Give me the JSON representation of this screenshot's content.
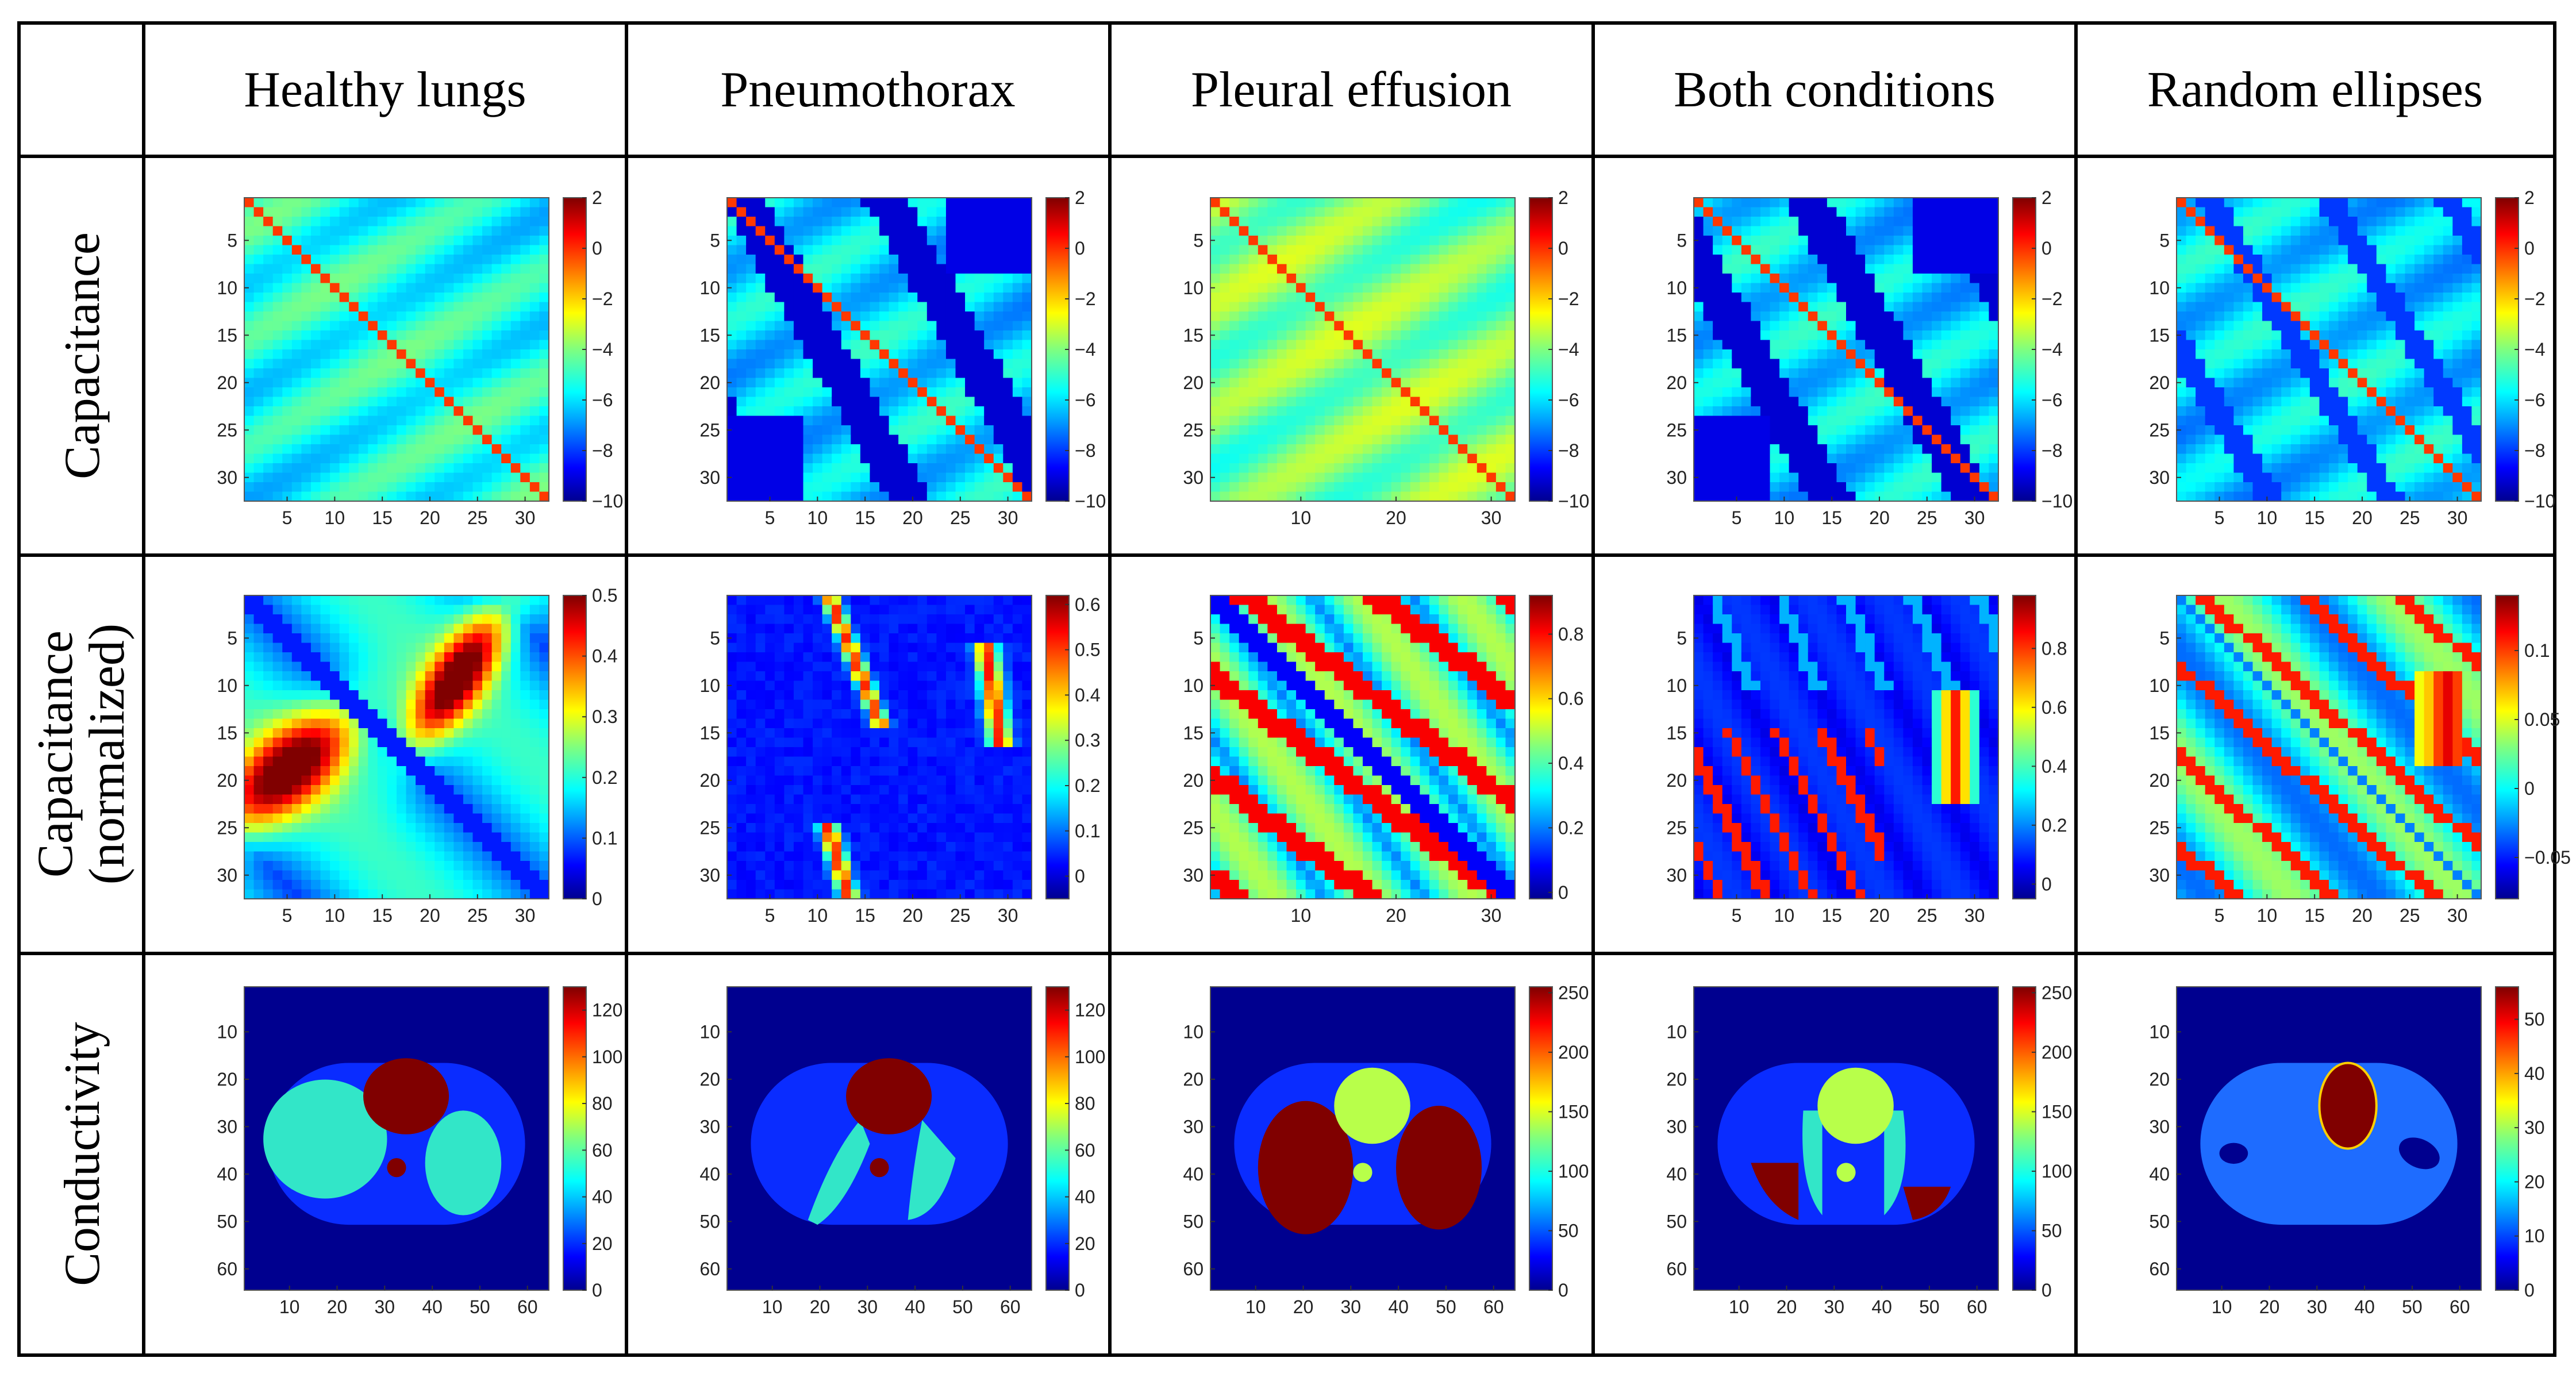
{
  "columns": [
    "Healthy lungs",
    "Pneumothorax",
    "Pleural effusion",
    "Both conditions",
    "Random ellipses"
  ],
  "rows": [
    "Capacitance",
    "Capacitance",
    "Conductivity"
  ],
  "row2_line2": "(normalized)",
  "chart_data": [
    {
      "type": "heatmap",
      "panel": "capacitance-healthy",
      "xticks": [
        5,
        10,
        15,
        20,
        25,
        30
      ],
      "yticks": [
        5,
        10,
        15,
        20,
        25,
        30
      ],
      "cbar_ticks": [
        2,
        0,
        -2,
        -4,
        -6,
        -8,
        -10
      ],
      "clim": [
        -10,
        2
      ]
    },
    {
      "type": "heatmap",
      "panel": "capacitance-pneumothorax",
      "xticks": [
        5,
        10,
        15,
        20,
        25,
        30
      ],
      "yticks": [
        5,
        10,
        15,
        20,
        25,
        30
      ],
      "cbar_ticks": [
        2,
        0,
        -2,
        -4,
        -6,
        -8,
        -10
      ],
      "clim": [
        -10,
        2
      ]
    },
    {
      "type": "heatmap",
      "panel": "capacitance-effusion",
      "xticks": [
        10,
        20,
        30
      ],
      "yticks": [
        5,
        10,
        15,
        20,
        25,
        30
      ],
      "cbar_ticks": [
        2,
        0,
        -2,
        -4,
        -6,
        -8,
        -10
      ],
      "clim": [
        -10,
        2
      ]
    },
    {
      "type": "heatmap",
      "panel": "capacitance-both",
      "xticks": [
        5,
        10,
        15,
        20,
        25,
        30
      ],
      "yticks": [
        5,
        10,
        15,
        20,
        25,
        30
      ],
      "cbar_ticks": [
        2,
        0,
        -2,
        -4,
        -6,
        -8,
        -10
      ],
      "clim": [
        -10,
        2
      ]
    },
    {
      "type": "heatmap",
      "panel": "capacitance-ellipses",
      "xticks": [
        5,
        10,
        15,
        20,
        25,
        30
      ],
      "yticks": [
        5,
        10,
        15,
        20,
        25,
        30
      ],
      "cbar_ticks": [
        2,
        0,
        -2,
        -4,
        -6,
        -8,
        -10
      ],
      "clim": [
        -10,
        2
      ]
    },
    {
      "type": "heatmap",
      "panel": "normalized-healthy",
      "xticks": [
        5,
        10,
        15,
        20,
        25,
        30
      ],
      "yticks": [
        5,
        10,
        15,
        20,
        25,
        30
      ],
      "cbar_ticks": [
        0.5,
        0.4,
        0.3,
        0.2,
        0.1,
        0
      ],
      "clim": [
        0,
        0.5
      ]
    },
    {
      "type": "heatmap",
      "panel": "normalized-pneumothorax",
      "xticks": [
        5,
        10,
        15,
        20,
        25,
        30
      ],
      "yticks": [
        5,
        10,
        15,
        20,
        25,
        30
      ],
      "cbar_ticks": [
        0.6,
        0.5,
        0.4,
        0.3,
        0.2,
        0.1,
        0
      ],
      "clim": [
        -0.05,
        0.62
      ]
    },
    {
      "type": "heatmap",
      "panel": "normalized-effusion",
      "xticks": [
        10,
        20,
        30
      ],
      "yticks": [
        5,
        10,
        15,
        20,
        25,
        30
      ],
      "cbar_ticks": [
        0.8,
        0.6,
        0.4,
        0.2,
        0
      ],
      "clim": [
        -0.02,
        0.92
      ]
    },
    {
      "type": "heatmap",
      "panel": "normalized-both",
      "xticks": [
        5,
        10,
        15,
        20,
        25,
        30
      ],
      "yticks": [
        5,
        10,
        15,
        20,
        25,
        30
      ],
      "cbar_ticks": [
        0.8,
        0.6,
        0.4,
        0.2,
        0
      ],
      "clim": [
        -0.05,
        0.98
      ]
    },
    {
      "type": "heatmap",
      "panel": "normalized-ellipses",
      "xticks": [
        5,
        10,
        15,
        20,
        25,
        30
      ],
      "yticks": [
        5,
        10,
        15,
        20,
        25,
        30
      ],
      "cbar_ticks": [
        0.1,
        0.05,
        0,
        -0.05
      ],
      "clim": [
        -0.08,
        0.14
      ]
    },
    {
      "type": "heatmap",
      "panel": "conductivity-healthy",
      "xticks": [
        10,
        20,
        30,
        40,
        50,
        60
      ],
      "yticks": [
        10,
        20,
        30,
        40,
        50,
        60
      ],
      "cbar_ticks": [
        120,
        100,
        80,
        60,
        40,
        20,
        0
      ],
      "clim": [
        0,
        130
      ]
    },
    {
      "type": "heatmap",
      "panel": "conductivity-pneumothorax",
      "xticks": [
        10,
        20,
        30,
        40,
        50,
        60
      ],
      "yticks": [
        10,
        20,
        30,
        40,
        50,
        60
      ],
      "cbar_ticks": [
        120,
        100,
        80,
        60,
        40,
        20,
        0
      ],
      "clim": [
        0,
        130
      ]
    },
    {
      "type": "heatmap",
      "panel": "conductivity-effusion",
      "xticks": [
        10,
        20,
        30,
        40,
        50,
        60
      ],
      "yticks": [
        10,
        20,
        30,
        40,
        50,
        60
      ],
      "cbar_ticks": [
        250,
        200,
        150,
        100,
        50,
        0
      ],
      "clim": [
        0,
        255
      ]
    },
    {
      "type": "heatmap",
      "panel": "conductivity-both",
      "xticks": [
        10,
        20,
        30,
        40,
        50,
        60
      ],
      "yticks": [
        10,
        20,
        30,
        40,
        50,
        60
      ],
      "cbar_ticks": [
        250,
        200,
        150,
        100,
        50,
        0
      ],
      "clim": [
        0,
        255
      ]
    },
    {
      "type": "heatmap",
      "panel": "conductivity-ellipses",
      "xticks": [
        10,
        20,
        30,
        40,
        50,
        60
      ],
      "yticks": [
        10,
        20,
        30,
        40,
        50,
        60
      ],
      "cbar_ticks": [
        50,
        40,
        30,
        20,
        10,
        0
      ],
      "clim": [
        0,
        56
      ]
    }
  ]
}
